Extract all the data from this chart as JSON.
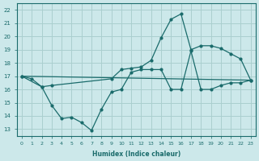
{
  "xlabel": "Humidex (Indice chaleur)",
  "bg_color": "#cce8ea",
  "grid_color": "#aacfcf",
  "line_color": "#1a6b6b",
  "xlim": [
    -0.5,
    23.5
  ],
  "ylim": [
    12.5,
    22.5
  ],
  "yticks": [
    13,
    14,
    15,
    16,
    17,
    18,
    19,
    20,
    21,
    22
  ],
  "xticks": [
    0,
    1,
    2,
    3,
    4,
    5,
    6,
    7,
    8,
    9,
    10,
    11,
    12,
    13,
    14,
    15,
    16,
    17,
    18,
    19,
    20,
    21,
    22,
    23
  ],
  "line1_x": [
    0,
    1,
    2,
    3,
    4,
    5,
    6,
    7,
    8,
    9,
    10,
    11,
    12,
    13,
    14,
    15,
    16,
    17,
    18,
    19,
    20,
    21,
    22,
    23
  ],
  "line1_y": [
    17.0,
    16.8,
    16.2,
    14.8,
    13.8,
    13.9,
    13.5,
    12.9,
    14.5,
    15.8,
    16.0,
    17.3,
    17.5,
    17.5,
    17.5,
    16.0,
    16.0,
    18.9,
    16.0,
    16.0,
    16.3,
    16.5,
    16.5,
    16.7
  ],
  "line2_x": [
    0,
    2,
    3,
    9,
    10,
    11,
    12,
    13,
    14,
    15,
    16,
    17,
    18,
    19,
    20,
    21,
    22,
    23
  ],
  "line2_y": [
    17.0,
    16.2,
    16.3,
    16.8,
    17.5,
    17.6,
    17.7,
    18.2,
    19.9,
    21.3,
    21.7,
    19.0,
    19.3,
    19.3,
    19.1,
    18.7,
    18.3,
    16.7
  ],
  "line3_x": [
    0,
    23
  ],
  "line3_y": [
    17.0,
    16.7
  ]
}
